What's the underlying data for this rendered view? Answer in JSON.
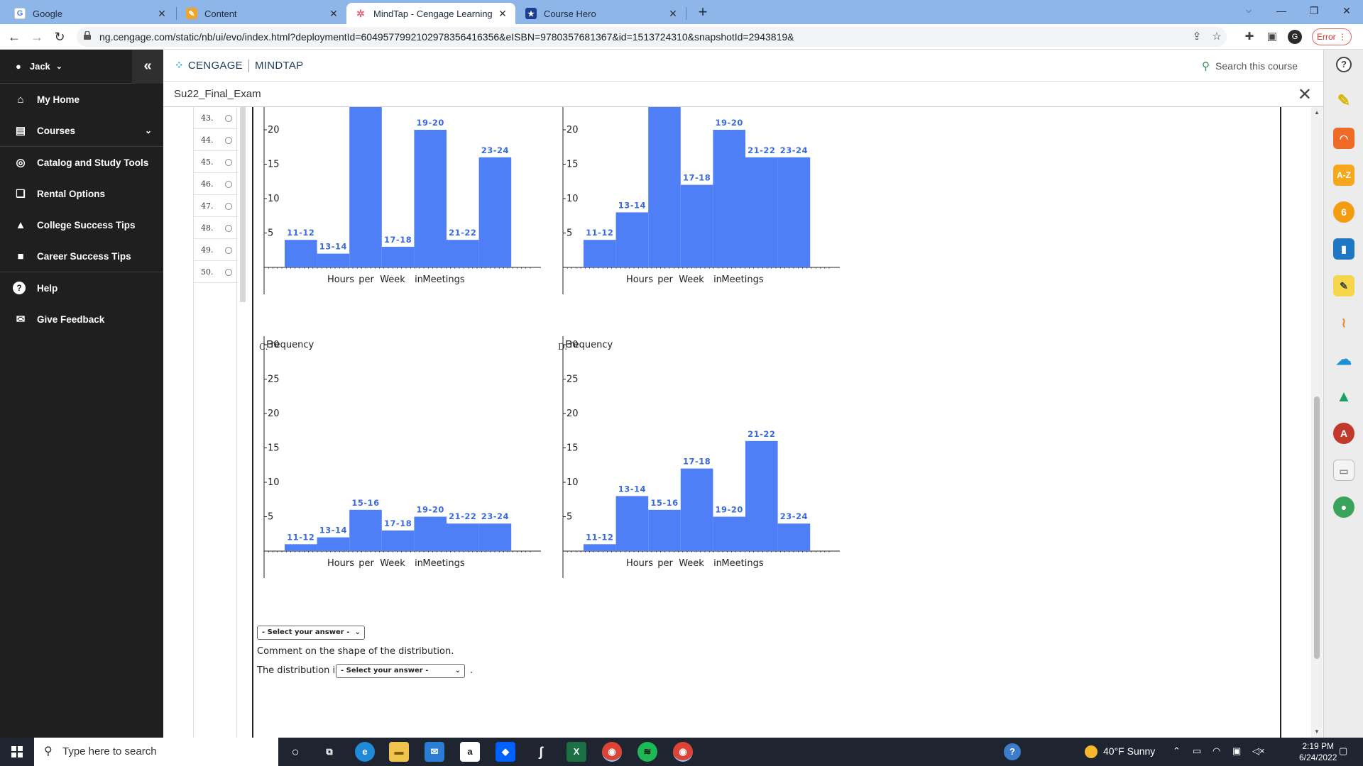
{
  "browser": {
    "tabs": [
      {
        "title": "Google",
        "icon": "google-g-icon",
        "color": "#4285f4",
        "glyph": "G"
      },
      {
        "title": "Content",
        "icon": "content-pencil-icon",
        "color": "#f0a52a",
        "glyph": "✎"
      },
      {
        "title": "MindTap - Cengage Learning",
        "icon": "cengage-icon",
        "color": "#e86a7a",
        "glyph": "✲"
      },
      {
        "title": "Course Hero",
        "icon": "course-hero-icon",
        "color": "#1a3d8f",
        "glyph": "★"
      }
    ],
    "active_tab": 2,
    "url": "ng.cengage.com/static/nb/ui/evo/index.html?deploymentId=6049577992102978356416356&eISBN=9780357681367&id=1513724310&snapshotId=2943819&",
    "error_label": "Error"
  },
  "leftnav": {
    "user": "Jack",
    "items": [
      {
        "label": "My Home",
        "icon": "home-icon",
        "glyph": "⌂"
      },
      {
        "label": "Courses",
        "icon": "book-icon",
        "glyph": "▤"
      },
      {
        "label": "Catalog and Study Tools",
        "icon": "compass-icon",
        "glyph": "◎"
      },
      {
        "label": "Rental Options",
        "icon": "open-book-icon",
        "glyph": "❑"
      },
      {
        "label": "College Success Tips",
        "icon": "graduation-cap-icon",
        "glyph": "🎓"
      },
      {
        "label": "Career Success Tips",
        "icon": "briefcase-icon",
        "glyph": "■"
      },
      {
        "label": "Help",
        "icon": "help-icon",
        "glyph": "?"
      },
      {
        "label": "Give Feedback",
        "icon": "feedback-icon",
        "glyph": "✉"
      }
    ]
  },
  "header": {
    "brand_left": "CENGAGE",
    "brand_right": "MINDTAP",
    "search_placeholder": "Search this course",
    "course_title": "Su22_Final_Exam"
  },
  "questions": {
    "numbers": [
      "43.",
      "44.",
      "45.",
      "46.",
      "47.",
      "48.",
      "49.",
      "50."
    ]
  },
  "charts": {
    "choice_labels": {
      "C": "C.",
      "D": "D."
    },
    "y_axis_label": "Frequency",
    "x_axis_label": "Hours per Week in Meetings",
    "bar_color": "#4f7ff7",
    "label_color": "#3a6ae0"
  },
  "chart_data": [
    {
      "type": "bar",
      "choice": "A",
      "categories": [
        "11-12",
        "13-14",
        "15-16",
        "17-18",
        "19-20",
        "21-22",
        "23-24"
      ],
      "values": [
        4,
        2,
        24,
        3,
        20,
        4,
        16
      ],
      "xlabel": "Hours per Week in Meetings",
      "ylabel": "",
      "ylim": [
        0,
        30
      ],
      "yticks": [
        5,
        10,
        15,
        20,
        25
      ]
    },
    {
      "type": "bar",
      "choice": "B",
      "categories": [
        "11-12",
        "13-14",
        "15-16",
        "17-18",
        "19-20",
        "21-22",
        "23-24"
      ],
      "values": [
        4,
        8,
        24,
        12,
        20,
        16,
        16
      ],
      "xlabel": "Hours per Week in Meetings",
      "ylabel": "",
      "ylim": [
        0,
        30
      ],
      "yticks": [
        5,
        10,
        15,
        20,
        25
      ]
    },
    {
      "type": "bar",
      "choice": "C",
      "categories": [
        "11-12",
        "13-14",
        "15-16",
        "17-18",
        "19-20",
        "21-22",
        "23-24"
      ],
      "values": [
        1,
        2,
        6,
        3,
        5,
        4,
        4
      ],
      "xlabel": "Hours per Week in Meetings",
      "ylabel": "Frequency",
      "ylim": [
        0,
        30
      ],
      "yticks": [
        5,
        10,
        15,
        20,
        25,
        30
      ]
    },
    {
      "type": "bar",
      "choice": "D",
      "categories": [
        "11-12",
        "13-14",
        "15-16",
        "17-18",
        "19-20",
        "21-22",
        "23-24"
      ],
      "values": [
        1,
        8,
        6,
        12,
        5,
        16,
        4
      ],
      "xlabel": "Hours per Week in Meetings",
      "ylabel": "Frequency",
      "ylim": [
        0,
        30
      ],
      "yticks": [
        5,
        10,
        15,
        20,
        25,
        30
      ]
    }
  ],
  "form": {
    "select_placeholder": "- Select your answer -",
    "shape_prompt": "Comment on the shape of the distribution.",
    "distribution_prefix": "The distribution is",
    "distribution_suffix": "."
  },
  "taskbar": {
    "search_placeholder": "Type here to search",
    "weather": "40°F  Sunny",
    "time": "2:19 PM",
    "date": "6/24/2022"
  }
}
